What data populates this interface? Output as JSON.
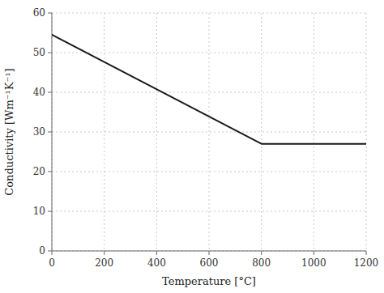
{
  "chart_data": {
    "type": "line",
    "xlabel": "Temperature [°C]",
    "ylabel": "Conductivity [Wm⁻¹K⁻¹]",
    "x": [
      0,
      800,
      1200
    ],
    "values": [
      54.5,
      27.0,
      27.0
    ],
    "color": "#1a1a1a",
    "xlim": [
      0,
      1200
    ],
    "ylim": [
      0,
      60
    ],
    "xticks": [
      0,
      200,
      400,
      600,
      800,
      1000,
      1200
    ],
    "yticks": [
      0,
      10,
      20,
      30,
      40,
      50,
      60
    ],
    "grid": true
  }
}
